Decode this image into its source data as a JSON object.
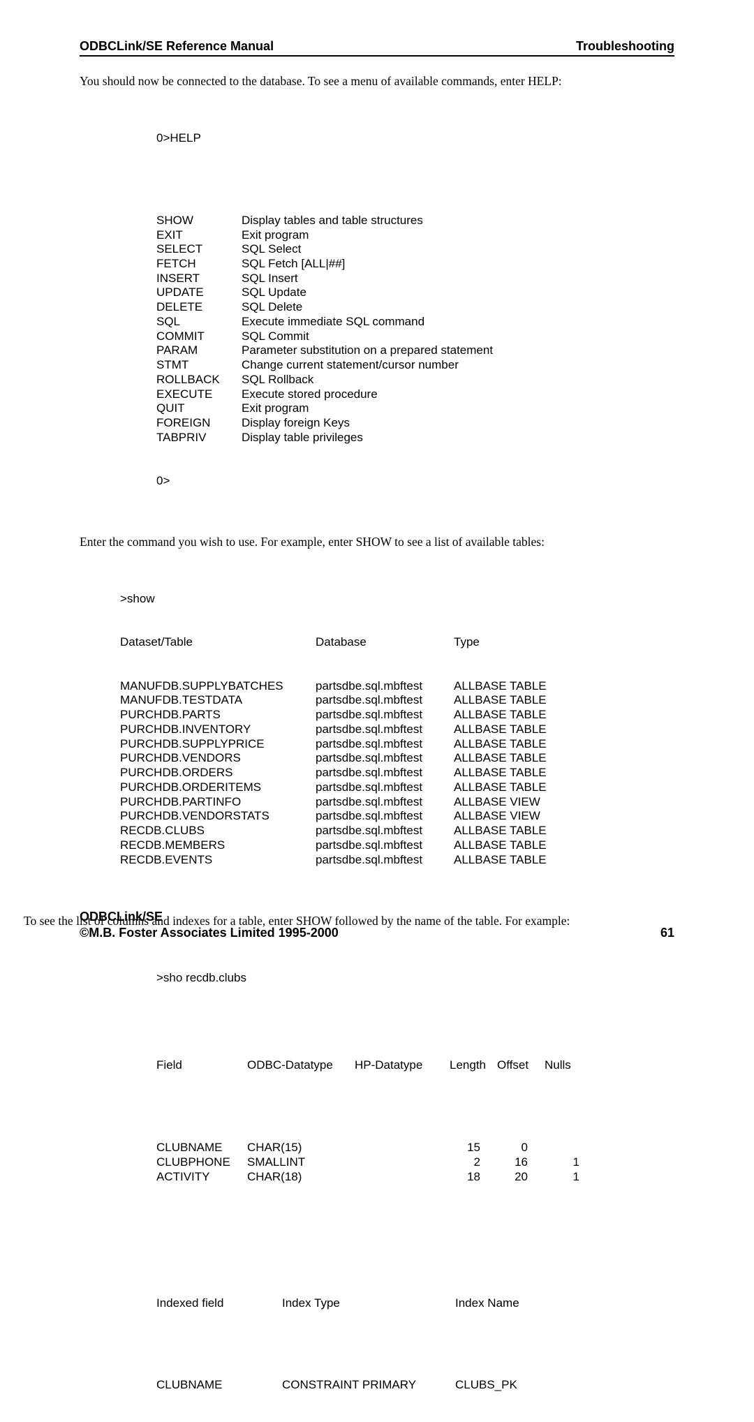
{
  "header": {
    "left": "ODBCLink/SE Reference Manual",
    "right": "Troubleshooting"
  },
  "intro1": "You should now be connected to the database. To see a menu of available commands, enter HELP:",
  "helpPrompt": "0>HELP",
  "helpCommands": [
    {
      "cmd": "SHOW",
      "desc": "Display tables and table structures"
    },
    {
      "cmd": "EXIT",
      "desc": "Exit program"
    },
    {
      "cmd": "SELECT",
      "desc": "SQL Select"
    },
    {
      "cmd": "FETCH",
      "desc": "SQL Fetch [ALL|##]"
    },
    {
      "cmd": "INSERT",
      "desc": "SQL Insert"
    },
    {
      "cmd": "UPDATE",
      "desc": "SQL Update"
    },
    {
      "cmd": "DELETE",
      "desc": "SQL Delete"
    },
    {
      "cmd": "SQL",
      "desc": "Execute immediate SQL command"
    },
    {
      "cmd": "COMMIT",
      "desc": "SQL Commit"
    },
    {
      "cmd": "PARAM",
      "desc": "Parameter substitution on a prepared statement"
    },
    {
      "cmd": "STMT",
      "desc": "Change current statement/cursor number"
    },
    {
      "cmd": "ROLLBACK",
      "desc": "SQL Rollback"
    },
    {
      "cmd": "EXECUTE",
      "desc": "Execute stored procedure"
    },
    {
      "cmd": "QUIT",
      "desc": "Exit program"
    },
    {
      "cmd": "FOREIGN",
      "desc": "Display foreign Keys"
    },
    {
      "cmd": "TABPRIV",
      "desc": "Display table privileges"
    }
  ],
  "helpTrailingPrompt": "0>",
  "intro2": "Enter the command you wish to use. For example, enter SHOW to see a list of available tables:",
  "showPrompt": ">show",
  "showHeader": {
    "c1": "Dataset/Table",
    "c2": "Database",
    "c3": "Type"
  },
  "showRows": [
    {
      "c1": "MANUFDB.SUPPLYBATCHES",
      "c2": "partsdbe.sql.mbftest",
      "c3": "ALLBASE TABLE"
    },
    {
      "c1": "MANUFDB.TESTDATA",
      "c2": "partsdbe.sql.mbftest",
      "c3": "ALLBASE TABLE"
    },
    {
      "c1": "PURCHDB.PARTS",
      "c2": "partsdbe.sql.mbftest",
      "c3": "ALLBASE TABLE"
    },
    {
      "c1": "PURCHDB.INVENTORY",
      "c2": "partsdbe.sql.mbftest",
      "c3": "ALLBASE TABLE"
    },
    {
      "c1": "PURCHDB.SUPPLYPRICE",
      "c2": "partsdbe.sql.mbftest",
      "c3": "ALLBASE TABLE"
    },
    {
      "c1": "PURCHDB.VENDORS",
      "c2": "partsdbe.sql.mbftest",
      "c3": "ALLBASE TABLE"
    },
    {
      "c1": "PURCHDB.ORDERS",
      "c2": "partsdbe.sql.mbftest",
      "c3": "ALLBASE TABLE"
    },
    {
      "c1": "PURCHDB.ORDERITEMS",
      "c2": "partsdbe.sql.mbftest",
      "c3": "ALLBASE TABLE"
    },
    {
      "c1": "PURCHDB.PARTINFO",
      "c2": "partsdbe.sql.mbftest",
      "c3": "ALLBASE VIEW"
    },
    {
      "c1": "PURCHDB.VENDORSTATS",
      "c2": "partsdbe.sql.mbftest",
      "c3": "ALLBASE VIEW"
    },
    {
      "c1": "RECDB.CLUBS",
      "c2": "partsdbe.sql.mbftest",
      "c3": "ALLBASE TABLE"
    },
    {
      "c1": "RECDB.MEMBERS",
      "c2": "partsdbe.sql.mbftest",
      "c3": "ALLBASE TABLE"
    },
    {
      "c1": "RECDB.EVENTS",
      "c2": "partsdbe.sql.mbftest",
      "c3": "ALLBASE TABLE"
    }
  ],
  "intro3": "To see the list of columns and indexes for a table, enter SHOW followed by the name  of the table. For example:",
  "shoPrompt": ">sho recdb.clubs",
  "colsHeader": {
    "field": "Field",
    "odbc": "ODBC-Datatype",
    "hp": "HP-Datatype",
    "len": "Length",
    "off": "Offset",
    "nulls": "Nulls"
  },
  "colsRows": [
    {
      "field": "CLUBNAME",
      "odbc": "CHAR(15)",
      "hp": "",
      "len": "15",
      "off": "0",
      "nulls": ""
    },
    {
      "field": "CLUBPHONE",
      "odbc": "SMALLINT",
      "hp": "",
      "len": "2",
      "off": "16",
      "nulls": "1"
    },
    {
      "field": "ACTIVITY",
      "odbc": "CHAR(18)",
      "hp": "",
      "len": "18",
      "off": "20",
      "nulls": "1"
    }
  ],
  "idxHeader": {
    "c1": "Indexed field",
    "c2": "Index Type",
    "c3": "Index Name"
  },
  "idxRows": [
    {
      "c1": "CLUBNAME",
      "c2": "CONSTRAINT PRIMARY",
      "c3": "CLUBS_PK"
    }
  ],
  "footer": {
    "line1": "ODBCLink/SE",
    "line2": "©M.B. Foster Associates Limited 1995-2000",
    "pageNum": "61"
  }
}
